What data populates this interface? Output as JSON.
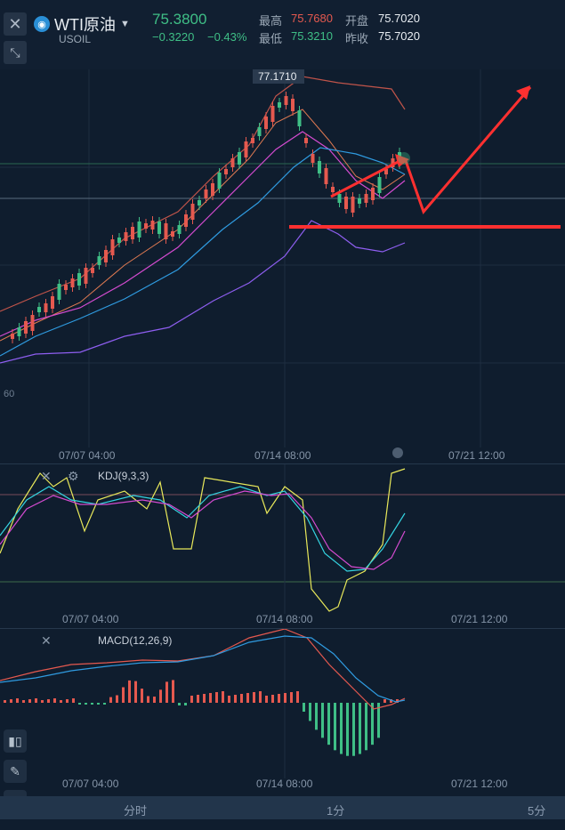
{
  "header": {
    "symbol_name": "WTI原油",
    "symbol_code": "USOIL",
    "price": "75.3800",
    "change": "−0.3220",
    "change_pct": "−0.43%",
    "high_label": "最高",
    "high_value": "75.7680",
    "low_label": "最低",
    "low_value": "75.3210",
    "open_label": "开盘",
    "open_value": "75.7020",
    "prev_close_label": "昨收",
    "prev_close_value": "75.7020"
  },
  "main_chart": {
    "peak_label": "77.1710",
    "left_axis_tick": "60",
    "time_labels": [
      "07/07 04:00",
      "07/14 08:00",
      "07/21 12:00"
    ]
  },
  "kdj_panel": {
    "title": "KDJ(9,3,3)",
    "time_labels": [
      "07/07 04:00",
      "07/14 08:00",
      "07/21 12:00"
    ]
  },
  "macd_panel": {
    "title": "MACD(12,26,9)",
    "time_labels": [
      "07/07 04:00",
      "07/14 08:00",
      "07/21 12:00"
    ]
  },
  "bottom_tabs": [
    "分时",
    "1分",
    "5分"
  ],
  "colors": {
    "up": "#e5594f",
    "down": "#3fbf86",
    "price_green": "#3fbf86",
    "price_red": "#e5594f",
    "annotation": "#ff3b3b"
  }
}
